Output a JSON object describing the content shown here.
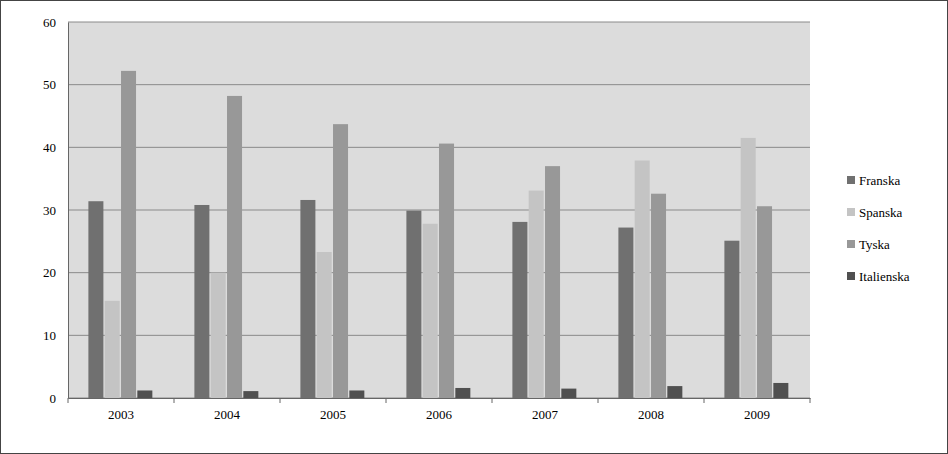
{
  "chart_data": {
    "type": "bar",
    "categories": [
      "2003",
      "2004",
      "2005",
      "2006",
      "2007",
      "2008",
      "2009"
    ],
    "series": [
      {
        "name": "Franska",
        "color": "#707070",
        "values": [
          31.4,
          30.8,
          31.6,
          29.9,
          28.1,
          27.2,
          25.1
        ]
      },
      {
        "name": "Spanska",
        "color": "#c4c4c4",
        "values": [
          15.5,
          20.0,
          23.3,
          27.8,
          33.1,
          37.9,
          41.5
        ]
      },
      {
        "name": "Tyska",
        "color": "#989898",
        "values": [
          52.2,
          48.2,
          43.7,
          40.6,
          37.0,
          32.6,
          30.6
        ]
      },
      {
        "name": "Italienska",
        "color": "#505050",
        "values": [
          1.2,
          1.1,
          1.2,
          1.6,
          1.5,
          1.9,
          2.4
        ]
      }
    ],
    "ylim": [
      0,
      60
    ],
    "yticks": [
      0,
      10,
      20,
      30,
      40,
      50,
      60
    ],
    "grid": true,
    "legend": "right"
  }
}
